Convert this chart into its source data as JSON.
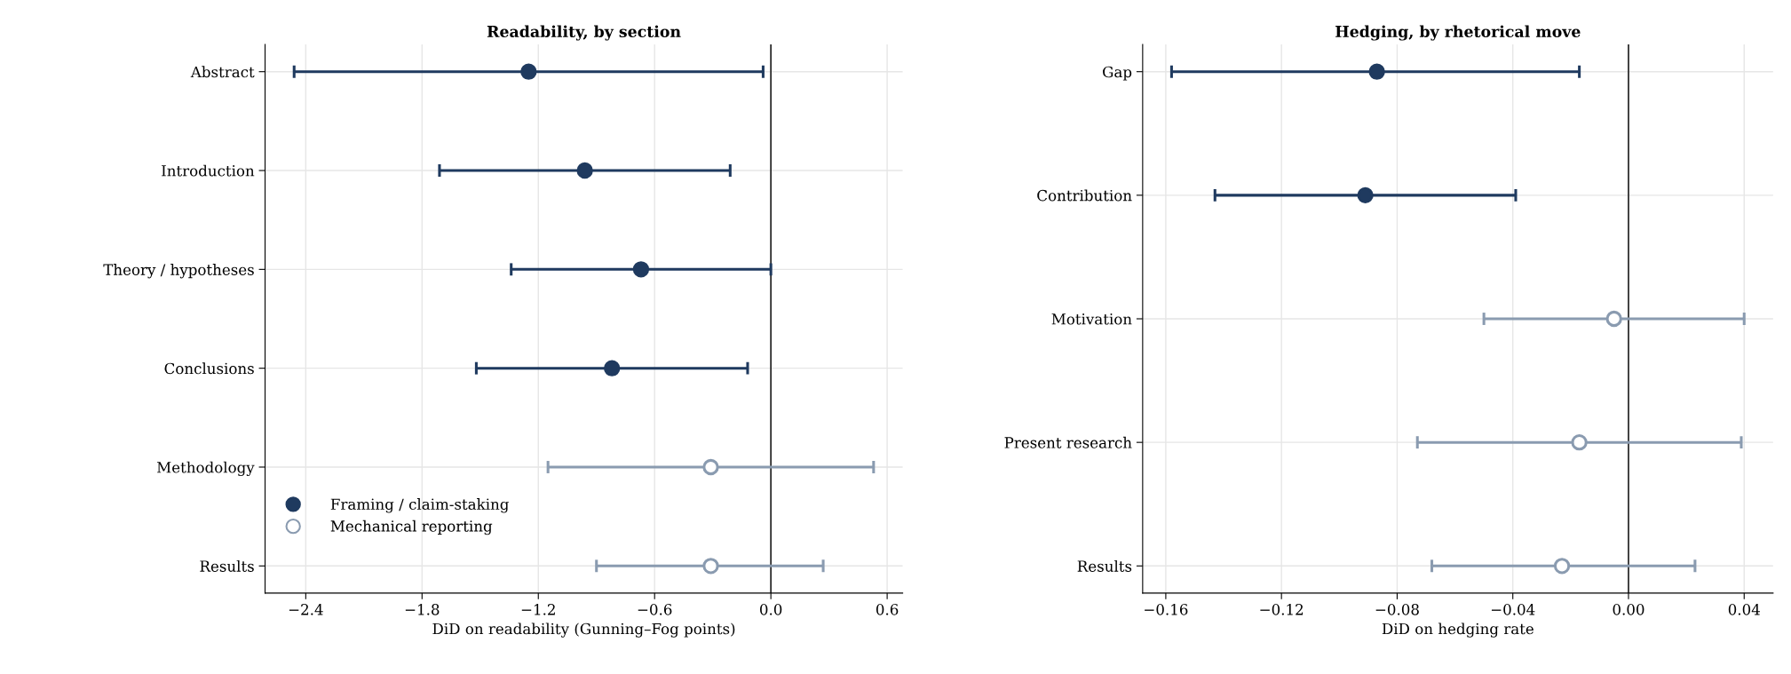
{
  "chart_data": [
    {
      "type": "scatter",
      "orientation": "horizontal",
      "title": "Readability, by section",
      "xlabel": "DiD on readability (Gunning–Fog points)",
      "categories": [
        "Abstract",
        "Introduction",
        "Theory / hypotheses",
        "Conclusions",
        "Methodology",
        "Results"
      ],
      "series": [
        {
          "name": "Framing / claim-staking",
          "color": "#1f3a5f",
          "values": [
            -1.25,
            -0.96,
            -0.67,
            -0.82,
            null,
            null
          ],
          "errors": [
            [
              -2.46,
              -0.04
            ],
            [
              -1.71,
              -0.21
            ],
            [
              -1.34,
              0.0
            ],
            [
              -1.52,
              -0.12
            ],
            null,
            null
          ]
        },
        {
          "name": "Mechanical reporting",
          "color": "#8a9bb0",
          "values": [
            null,
            null,
            null,
            null,
            -0.31,
            -0.31
          ],
          "errors": [
            null,
            null,
            null,
            null,
            [
              -1.15,
              0.53
            ],
            [
              -0.9,
              0.27
            ]
          ]
        }
      ],
      "xlim": [
        -2.61,
        0.68
      ],
      "xticks": [
        {
          "value": -2.4,
          "label": "−2.4"
        },
        {
          "value": -1.8,
          "label": "−1.8"
        },
        {
          "value": -1.2,
          "label": "−1.2"
        },
        {
          "value": -0.6,
          "label": "−0.6"
        },
        {
          "value": 0,
          "label": "0.0"
        },
        0.6
      ],
      "ref_lines": [
        {
          "axis": "x",
          "value": 0,
          "color": "#222222"
        }
      ],
      "grid": true,
      "legend": "bottom left",
      "marker": "circle"
    },
    {
      "type": "scatter",
      "orientation": "horizontal",
      "title": "Hedging, by rhetorical move",
      "xlabel": "DiD on hedging rate",
      "categories": [
        "Gap",
        "Contribution",
        "Motivation",
        "Present research",
        "Results"
      ],
      "series": [
        {
          "color": "#1f3a5f",
          "values": [
            -0.087,
            -0.091,
            null,
            null,
            null
          ],
          "errors": [
            [
              -0.158,
              -0.017
            ],
            [
              -0.143,
              -0.039
            ],
            null,
            null,
            null
          ]
        },
        {
          "color": "#8a9bb0",
          "values": [
            null,
            null,
            -0.005,
            -0.017,
            -0.023
          ],
          "errors": [
            null,
            null,
            [
              -0.05,
              0.04
            ],
            [
              -0.073,
              0.039
            ],
            [
              -0.068,
              0.023
            ]
          ]
        }
      ],
      "xlim": [
        -0.168,
        0.05
      ],
      "xticks": [
        {
          "value": -0.16,
          "label": "−0.16"
        },
        {
          "value": -0.12,
          "label": "−0.12"
        },
        {
          "value": -0.08,
          "label": "−0.08"
        },
        {
          "value": -0.04,
          "label": "−0.04"
        },
        {
          "value": 0,
          "label": "0.00"
        },
        0.04
      ],
      "ref_lines": [
        {
          "axis": "x",
          "value": 0,
          "color": "#222222"
        }
      ],
      "grid": true,
      "marker": "circle"
    }
  ]
}
